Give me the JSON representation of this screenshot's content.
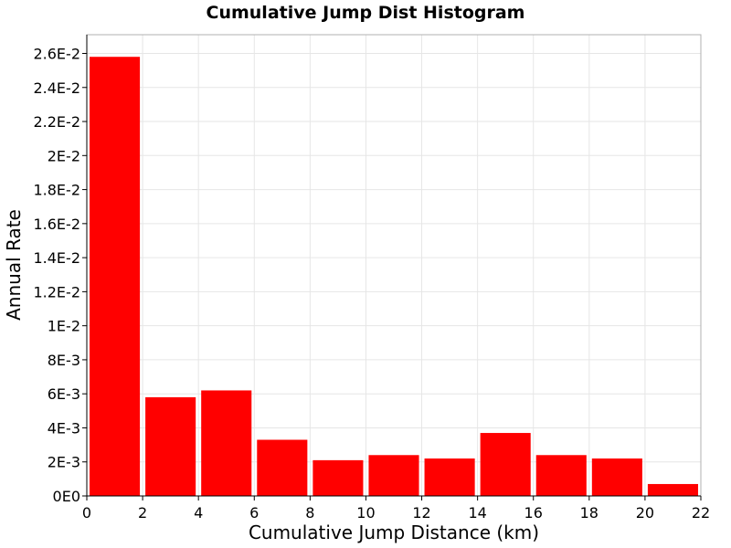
{
  "chart_data": {
    "type": "bar",
    "title": "Cumulative Jump Dist Histogram",
    "xlabel": "Cumulative Jump Distance (km)",
    "ylabel": "Annual Rate",
    "xlim": [
      0,
      22
    ],
    "ylim": [
      0,
      0.0271
    ],
    "bar_color": "#ff0000",
    "grid": true,
    "x_ticks": [
      0,
      2,
      4,
      6,
      8,
      10,
      12,
      14,
      16,
      18,
      20,
      22
    ],
    "x_tick_labels": [
      "0",
      "2",
      "4",
      "6",
      "8",
      "10",
      "12",
      "14",
      "16",
      "18",
      "20",
      "22"
    ],
    "y_ticks": [
      0,
      0.002,
      0.004,
      0.006,
      0.008,
      0.01,
      0.012,
      0.014,
      0.016,
      0.018,
      0.02,
      0.022,
      0.024,
      0.026
    ],
    "y_tick_labels": [
      "0E0",
      "2E-3",
      "4E-3",
      "6E-3",
      "8E-3",
      "1E-2",
      "1.2E-2",
      "1.4E-2",
      "1.6E-2",
      "1.8E-2",
      "2E-2",
      "2.2E-2",
      "2.4E-2",
      "2.6E-2"
    ],
    "bins": [
      {
        "x": 1,
        "value": 0.0258
      },
      {
        "x": 3,
        "value": 0.0058
      },
      {
        "x": 5,
        "value": 0.0062
      },
      {
        "x": 7,
        "value": 0.0033
      },
      {
        "x": 9,
        "value": 0.0021
      },
      {
        "x": 11,
        "value": 0.0024
      },
      {
        "x": 13,
        "value": 0.0022
      },
      {
        "x": 15,
        "value": 0.0037
      },
      {
        "x": 17,
        "value": 0.0024
      },
      {
        "x": 19,
        "value": 0.0022
      },
      {
        "x": 21,
        "value": 0.0007
      }
    ],
    "bin_width": 2
  }
}
